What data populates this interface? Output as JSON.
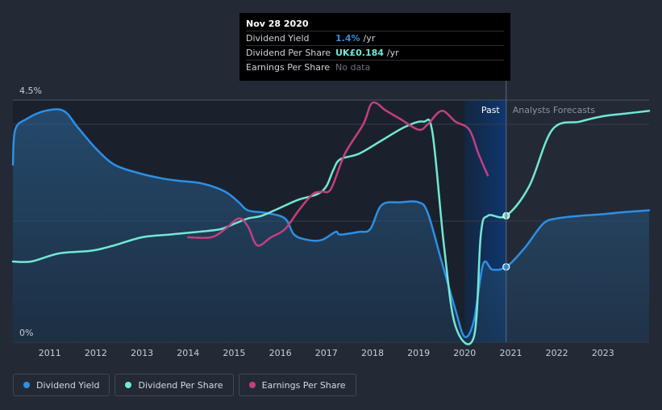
{
  "tooltip": {
    "date": "Nov 28 2020",
    "rows": [
      {
        "label": "Dividend Yield",
        "value": "1.4%",
        "unit": "/yr",
        "color": "#2d8fe6"
      },
      {
        "label": "Dividend Per Share",
        "value": "UK£0.184",
        "unit": "/yr",
        "color": "#72e8d4"
      },
      {
        "label": "Earnings Per Share",
        "value": "No data",
        "unit": "",
        "color": "#6b7280"
      }
    ]
  },
  "legend": [
    {
      "label": "Dividend Yield",
      "color": "#2d8fe6"
    },
    {
      "label": "Dividend Per Share",
      "color": "#72e8d4"
    },
    {
      "label": "Earnings Per Share",
      "color": "#c2407f"
    }
  ],
  "chart_data": {
    "type": "line",
    "y_label_top": "4.5%",
    "y_label_bottom": "0%",
    "ylim": [
      0,
      4.5
    ],
    "xlim": [
      2010.2,
      2024.0
    ],
    "x_tick_labels": [
      "2011",
      "2012",
      "2013",
      "2014",
      "2015",
      "2016",
      "2017",
      "2018",
      "2019",
      "2020",
      "2021",
      "2022",
      "2023"
    ],
    "x_ticks": [
      2011,
      2012,
      2013,
      2014,
      2015,
      2016,
      2017,
      2018,
      2019,
      2020,
      2021,
      2022,
      2023
    ],
    "past_label": "Past",
    "forecast_label": "Analysts Forecasts",
    "past_band": [
      2020.0,
      2020.9
    ],
    "series": [
      {
        "name": "Dividend Yield",
        "color": "#2d8fe6",
        "filled": true,
        "x": [
          2010.2,
          2010.25,
          2010.5,
          2010.9,
          2011.3,
          2011.6,
          2012.0,
          2012.4,
          2012.9,
          2013.4,
          2013.8,
          2014.3,
          2014.8,
          2015.1,
          2015.3,
          2015.7,
          2016.1,
          2016.3,
          2016.6,
          2016.9,
          2017.2,
          2017.3,
          2017.7,
          2017.95,
          2018.2,
          2018.6,
          2019.0,
          2019.2,
          2019.5,
          2019.8,
          2020.0,
          2020.2,
          2020.4,
          2020.6,
          2020.9,
          2021.3,
          2021.7,
          2022.0,
          2022.5,
          2023.0,
          2023.5,
          2024.0
        ],
        "y": [
          3.3,
          3.95,
          4.15,
          4.3,
          4.3,
          4.0,
          3.6,
          3.3,
          3.15,
          3.05,
          3.0,
          2.95,
          2.8,
          2.6,
          2.45,
          2.4,
          2.3,
          2.0,
          1.9,
          1.9,
          2.05,
          2.0,
          2.05,
          2.1,
          2.55,
          2.6,
          2.6,
          2.4,
          1.5,
          0.6,
          0.1,
          0.4,
          1.45,
          1.35,
          1.4,
          1.75,
          2.2,
          2.3,
          2.35,
          2.38,
          2.42,
          2.45
        ]
      },
      {
        "name": "Dividend Per Share",
        "color": "#72e8d4",
        "filled": false,
        "x": [
          2010.2,
          2010.6,
          2011.2,
          2011.9,
          2012.4,
          2013.0,
          2013.6,
          2014.2,
          2014.7,
          2015.0,
          2015.3,
          2015.6,
          2016.0,
          2016.4,
          2016.8,
          2017.0,
          2017.15,
          2017.3,
          2017.7,
          2018.2,
          2018.7,
          2019.1,
          2019.3,
          2019.55,
          2019.8,
          2020.2,
          2020.35,
          2020.5,
          2020.9,
          2021.4,
          2021.9,
          2022.5,
          2023.0,
          2023.5,
          2024.0
        ],
        "y": [
          1.5,
          1.5,
          1.65,
          1.7,
          1.8,
          1.95,
          2.0,
          2.05,
          2.1,
          2.2,
          2.3,
          2.35,
          2.5,
          2.65,
          2.75,
          2.9,
          3.2,
          3.4,
          3.5,
          3.75,
          4.0,
          4.1,
          3.9,
          1.8,
          0.3,
          0.1,
          2.0,
          2.35,
          2.35,
          2.9,
          3.95,
          4.1,
          4.2,
          4.25,
          4.3
        ]
      },
      {
        "name": "Earnings Per Share",
        "color": "#c2407f",
        "filled": false,
        "x": [
          2014.0,
          2014.5,
          2014.8,
          2015.1,
          2015.3,
          2015.5,
          2015.8,
          2016.1,
          2016.4,
          2016.7,
          2016.9,
          2017.1,
          2017.4,
          2017.8,
          2018.0,
          2018.3,
          2018.6,
          2019.0,
          2019.2,
          2019.5,
          2019.8,
          2020.1,
          2020.3,
          2020.5
        ],
        "y": [
          1.95,
          1.95,
          2.1,
          2.3,
          2.15,
          1.8,
          1.95,
          2.1,
          2.45,
          2.75,
          2.8,
          2.85,
          3.5,
          4.05,
          4.45,
          4.3,
          4.15,
          3.95,
          4.05,
          4.3,
          4.1,
          3.95,
          3.5,
          3.1
        ]
      }
    ],
    "markers": [
      {
        "series": "Dividend Per Share",
        "x": 2020.9,
        "y": 2.35
      },
      {
        "series": "Dividend Yield",
        "x": 2020.9,
        "y": 1.4
      }
    ]
  }
}
